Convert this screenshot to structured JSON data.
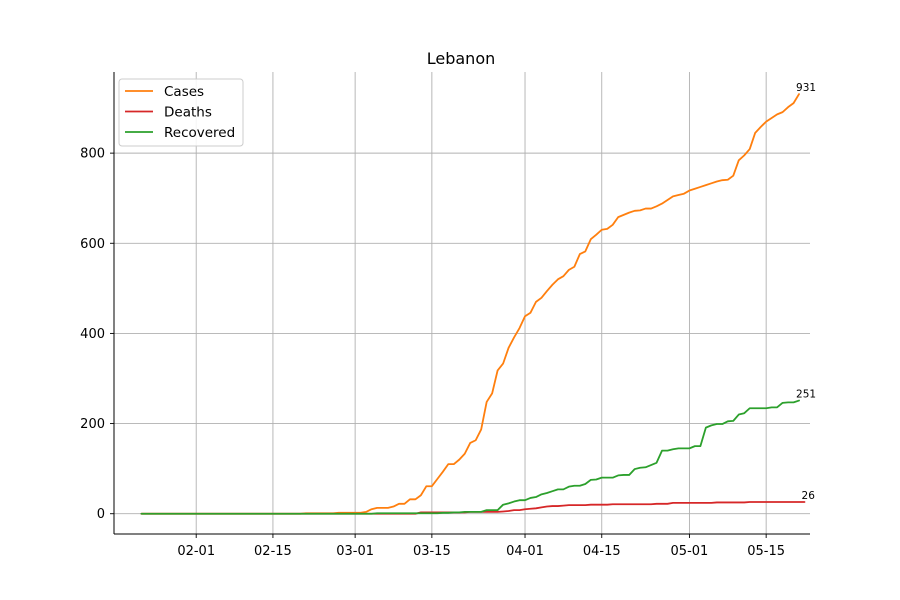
{
  "chart_data": {
    "type": "line",
    "title": "Lebanon",
    "xlabel": "",
    "ylabel": "",
    "x_start": "2020-01-22",
    "x_end": "2020-05-18",
    "xlim": [
      "2020-01-17",
      "2020-05-23"
    ],
    "ylim": [
      -45,
      980
    ],
    "x_ticks": [
      "2020-02-01",
      "2020-02-15",
      "2020-03-01",
      "2020-03-15",
      "2020-04-01",
      "2020-04-15",
      "2020-05-01",
      "2020-05-15"
    ],
    "x_tick_labels": [
      "02-01",
      "02-15",
      "03-01",
      "03-15",
      "04-01",
      "04-15",
      "05-01",
      "05-15"
    ],
    "y_ticks": [
      0,
      200,
      400,
      600,
      800
    ],
    "y_tick_labels": [
      "0",
      "200",
      "400",
      "600",
      "800"
    ],
    "grid": true,
    "legend_position": "top-left",
    "series": [
      {
        "name": "Cases",
        "color": "#ff7f0e",
        "end_label": "931",
        "values": [
          0,
          0,
          0,
          0,
          0,
          0,
          0,
          0,
          0,
          0,
          0,
          0,
          0,
          0,
          0,
          0,
          0,
          0,
          0,
          0,
          0,
          0,
          0,
          0,
          0,
          0,
          0,
          0,
          0,
          0,
          1,
          1,
          1,
          1,
          1,
          1,
          2,
          2,
          2,
          2,
          2,
          4,
          10,
          13,
          13,
          13,
          16,
          22,
          22,
          32,
          32,
          41,
          61,
          61,
          77,
          93,
          110,
          110,
          120,
          133,
          157,
          163,
          187,
          248,
          267,
          318,
          333,
          368,
          391,
          412,
          438,
          446,
          470,
          479,
          494,
          508,
          520,
          527,
          541,
          548,
          576,
          582,
          609,
          619,
          630,
          632,
          641,
          658,
          663,
          668,
          672,
          673,
          677,
          677,
          682,
          688,
          696,
          704,
          707,
          710,
          717,
          721,
          725,
          729,
          733,
          737,
          740,
          741,
          750,
          784,
          795,
          809,
          845,
          858,
          870,
          878,
          886,
          891,
          902,
          911,
          931
        ]
      },
      {
        "name": "Deaths",
        "color": "#d62728",
        "end_label": "26",
        "values": [
          0,
          0,
          0,
          0,
          0,
          0,
          0,
          0,
          0,
          0,
          0,
          0,
          0,
          0,
          0,
          0,
          0,
          0,
          0,
          0,
          0,
          0,
          0,
          0,
          0,
          0,
          0,
          0,
          0,
          0,
          0,
          0,
          0,
          0,
          0,
          0,
          0,
          0,
          0,
          0,
          0,
          0,
          0,
          0,
          0,
          0,
          0,
          0,
          0,
          0,
          0,
          3,
          3,
          3,
          3,
          3,
          3,
          3,
          3,
          3,
          4,
          4,
          4,
          4,
          4,
          4,
          5,
          6,
          8,
          8,
          10,
          11,
          12,
          14,
          16,
          17,
          17,
          18,
          19,
          19,
          19,
          19,
          20,
          20,
          20,
          20,
          21,
          21,
          21,
          21,
          21,
          21,
          21,
          21,
          22,
          22,
          22,
          24,
          24,
          24,
          24,
          24,
          24,
          24,
          24,
          25,
          25,
          25,
          25,
          25,
          25,
          26,
          26,
          26,
          26,
          26,
          26,
          26,
          26,
          26,
          26,
          26
        ]
      },
      {
        "name": "Recovered",
        "color": "#2ca02c",
        "end_label": "251",
        "values": [
          0,
          0,
          0,
          0,
          0,
          0,
          0,
          0,
          0,
          0,
          0,
          0,
          0,
          0,
          0,
          0,
          0,
          0,
          0,
          0,
          0,
          0,
          0,
          0,
          0,
          0,
          0,
          0,
          0,
          0,
          0,
          0,
          0,
          0,
          0,
          0,
          0,
          0,
          0,
          0,
          0,
          0,
          0,
          1,
          1,
          1,
          1,
          1,
          1,
          1,
          1,
          1,
          1,
          1,
          1,
          2,
          2,
          3,
          3,
          4,
          4,
          4,
          4,
          8,
          8,
          8,
          20,
          23,
          27,
          30,
          30,
          35,
          37,
          43,
          46,
          50,
          54,
          54,
          60,
          62,
          62,
          66,
          75,
          76,
          80,
          80,
          80,
          85,
          86,
          86,
          99,
          102,
          103,
          108,
          113,
          140,
          140,
          143,
          145,
          145,
          145,
          150,
          150,
          191,
          196,
          199,
          199,
          205,
          206,
          220,
          223,
          234,
          234,
          234,
          234,
          236,
          236,
          246,
          247,
          247,
          251
        ]
      }
    ]
  }
}
